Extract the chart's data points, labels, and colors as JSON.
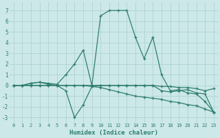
{
  "xlabel": "Humidex (Indice chaleur)",
  "bg_color": "#cce8e8",
  "line_color": "#2e7d6e",
  "grid_color": "#aacfcf",
  "xlim": [
    -0.5,
    23.5
  ],
  "ylim": [
    -3.5,
    7.8
  ],
  "xticks": [
    0,
    1,
    2,
    3,
    4,
    5,
    6,
    7,
    8,
    9,
    10,
    11,
    12,
    13,
    14,
    15,
    16,
    17,
    18,
    19,
    20,
    21,
    22,
    23
  ],
  "yticks": [
    -3,
    -2,
    -1,
    0,
    1,
    2,
    3,
    4,
    5,
    6,
    7
  ],
  "series": [
    {
      "x": [
        0,
        1,
        2,
        3,
        4,
        5,
        6,
        7,
        8,
        9,
        10,
        11,
        12,
        13,
        14,
        15,
        16,
        17,
        18,
        19,
        20,
        21,
        22,
        23
      ],
      "y": [
        0.0,
        0.0,
        0.2,
        0.3,
        0.2,
        0.1,
        1.0,
        2.0,
        3.3,
        0.0,
        6.5,
        7.0,
        7.0,
        7.0,
        4.5,
        2.5,
        4.5,
        1.0,
        -0.5,
        -0.4,
        -0.7,
        -0.8,
        -1.5,
        -2.5
      ]
    },
    {
      "x": [
        0,
        1,
        2,
        3,
        4,
        5,
        6,
        7,
        8,
        9,
        10,
        11,
        12,
        13,
        14,
        15,
        16,
        17,
        18,
        19,
        20,
        21,
        22,
        23
      ],
      "y": [
        0.0,
        0.0,
        0.2,
        0.3,
        0.1,
        0.0,
        -0.5,
        -3.0,
        -1.8,
        -0.1,
        0.0,
        0.0,
        0.0,
        0.0,
        0.0,
        0.0,
        0.0,
        -0.5,
        -0.6,
        -0.5,
        -0.4,
        -0.7,
        -0.8,
        -2.5
      ]
    },
    {
      "x": [
        0,
        1,
        2,
        3,
        4,
        5,
        6,
        7,
        8,
        9,
        10,
        11,
        12,
        13,
        14,
        15,
        16,
        17,
        18,
        19,
        20,
        21,
        22,
        23
      ],
      "y": [
        0.0,
        0.0,
        0.0,
        0.0,
        0.0,
        0.0,
        0.0,
        0.0,
        0.0,
        -0.1,
        -0.2,
        -0.4,
        -0.6,
        -0.8,
        -1.0,
        -1.1,
        -1.2,
        -1.3,
        -1.5,
        -1.6,
        -1.8,
        -1.9,
        -2.2,
        -2.5
      ]
    },
    {
      "x": [
        0,
        1,
        2,
        3,
        4,
        5,
        6,
        7,
        8,
        9,
        10,
        11,
        12,
        13,
        14,
        15,
        16,
        17,
        18,
        19,
        20,
        21,
        22,
        23
      ],
      "y": [
        0.0,
        0.0,
        0.0,
        0.0,
        0.0,
        0.0,
        0.0,
        0.0,
        0.0,
        0.0,
        0.0,
        0.0,
        0.0,
        0.0,
        0.0,
        0.0,
        0.0,
        -0.1,
        -0.1,
        -0.2,
        -0.2,
        -0.3,
        -0.5,
        -0.3
      ]
    }
  ]
}
